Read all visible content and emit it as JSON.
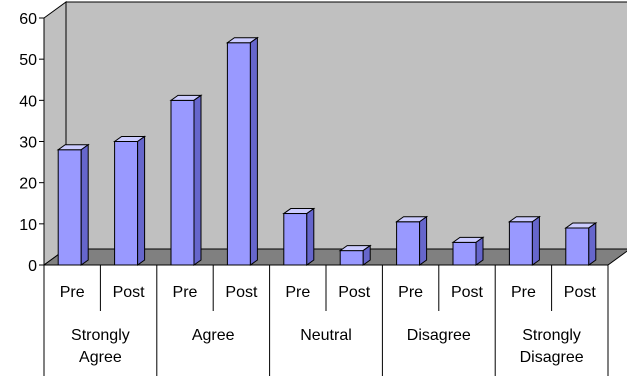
{
  "chart_data": {
    "type": "bar",
    "style": "3d-column",
    "ylim": [
      0,
      60
    ],
    "yticks": [
      "0",
      "10",
      "20",
      "30",
      "40",
      "50",
      "60"
    ],
    "groups": [
      {
        "label_lines": [
          "Strongly",
          "Agree"
        ],
        "categories": [
          "Pre",
          "Post"
        ],
        "values": [
          28,
          30
        ]
      },
      {
        "label_lines": [
          "Agree"
        ],
        "categories": [
          "Pre",
          "Post"
        ],
        "values": [
          40,
          54
        ]
      },
      {
        "label_lines": [
          "Neutral"
        ],
        "categories": [
          "Pre",
          "Post"
        ],
        "values": [
          12.5,
          3.5
        ]
      },
      {
        "label_lines": [
          "Disagree"
        ],
        "categories": [
          "Pre",
          "Post"
        ],
        "values": [
          10.5,
          5.5
        ]
      },
      {
        "label_lines": [
          "Strongly",
          "Disagree"
        ],
        "categories": [
          "Pre",
          "Post"
        ],
        "values": [
          10.5,
          9
        ]
      }
    ],
    "grid": false,
    "legend": "none",
    "colors": {
      "wall": "#c0c0c0",
      "floor": "#808080",
      "bar_front": "#9999ff",
      "bar_top": "#ccccff",
      "bar_side": "#6666cc"
    }
  }
}
